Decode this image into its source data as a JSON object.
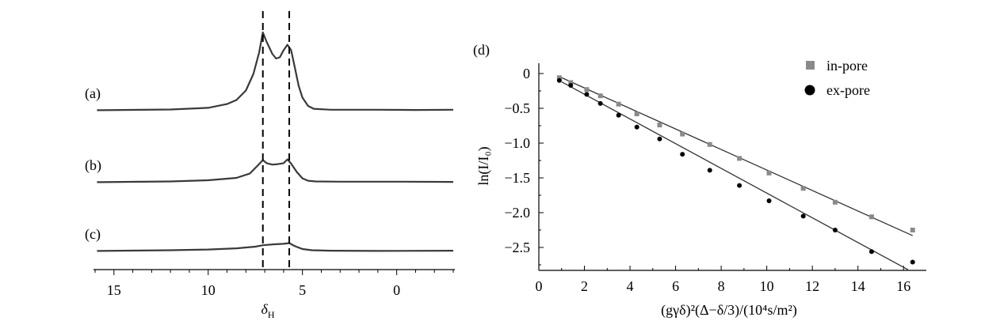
{
  "chart_data": [
    {
      "type": "line",
      "panel": "left",
      "xlabel": "δH",
      "xlim": [
        16,
        -3
      ],
      "x_ticks": [
        "15",
        "10",
        "5",
        "0"
      ],
      "x_tick_values": [
        15,
        10,
        5,
        0
      ],
      "dashed_markers_x": [
        7.1,
        5.7
      ],
      "grid": false,
      "series": [
        {
          "name": "(a)",
          "x": [
            15.9,
            12,
            10,
            9,
            8.5,
            8.0,
            7.6,
            7.3,
            7.1,
            6.9,
            6.6,
            6.4,
            6.2,
            6.0,
            5.8,
            5.6,
            5.4,
            5.2,
            5.0,
            4.7,
            4.4,
            3.5,
            1,
            -1,
            -3
          ],
          "y": [
            0.02,
            0.05,
            0.12,
            0.28,
            0.45,
            0.85,
            1.55,
            2.45,
            3.3,
            2.9,
            2.4,
            2.2,
            2.25,
            2.55,
            2.78,
            2.55,
            1.8,
            1.05,
            0.55,
            0.2,
            0.08,
            0.04,
            0.04,
            0.03,
            0.04
          ]
        },
        {
          "name": "(b)",
          "x": [
            15.9,
            12,
            10,
            8.5,
            7.8,
            7.4,
            7.1,
            6.9,
            6.6,
            6.3,
            6.0,
            5.8,
            5.6,
            5.3,
            5.0,
            4.7,
            4.3,
            3,
            0,
            -3
          ],
          "y": [
            0.02,
            0.05,
            0.1,
            0.2,
            0.38,
            0.7,
            0.95,
            0.82,
            0.76,
            0.78,
            0.82,
            0.98,
            0.8,
            0.45,
            0.18,
            0.08,
            0.05,
            0.04,
            0.04,
            0.03
          ]
        },
        {
          "name": "(c)",
          "x": [
            15.9,
            12,
            10,
            8.5,
            7.5,
            7.1,
            6.5,
            6.0,
            5.7,
            5.4,
            5.0,
            4.5,
            3.5,
            1,
            -3
          ],
          "y": [
            0.02,
            0.05,
            0.08,
            0.13,
            0.2,
            0.26,
            0.3,
            0.32,
            0.35,
            0.22,
            0.1,
            0.05,
            0.03,
            0.02,
            0.03
          ]
        }
      ]
    },
    {
      "type": "scatter",
      "panel": "right",
      "title": "(d)",
      "xlabel": "(gγδ)²(Δ−δ/3)/(10⁴s/m²)",
      "ylabel": "ln(I/I₀)",
      "xlim": [
        0,
        17
      ],
      "ylim": [
        -2.8,
        0.1
      ],
      "x_ticks": [
        "0",
        "2",
        "4",
        "6",
        "8",
        "10",
        "12",
        "14",
        "16"
      ],
      "x_tick_values": [
        0,
        2,
        4,
        6,
        8,
        10,
        12,
        14,
        16
      ],
      "y_ticks": [
        "0",
        "−0.5",
        "−1.0",
        "−1.5",
        "−2.0",
        "−2.5"
      ],
      "y_tick_values": [
        0,
        -0.5,
        -1.0,
        -1.5,
        -2.0,
        -2.5
      ],
      "legend_position": "top-right",
      "grid": false,
      "series": [
        {
          "name": "in-pore",
          "marker": "square",
          "color": "#8a8a8a",
          "x": [
            0.9,
            1.4,
            2.1,
            2.7,
            3.5,
            4.3,
            5.3,
            6.3,
            7.5,
            8.8,
            10.1,
            11.6,
            13.0,
            14.6,
            16.4
          ],
          "y": [
            -0.06,
            -0.13,
            -0.23,
            -0.32,
            -0.44,
            -0.58,
            -0.74,
            -0.87,
            -1.02,
            -1.22,
            -1.43,
            -1.65,
            -1.85,
            -2.06,
            -2.25
          ],
          "fit": [
            [
              1.0,
              -0.06
            ],
            [
              16.4,
              -2.33
            ]
          ]
        },
        {
          "name": "ex-pore",
          "marker": "circle",
          "color": "#000000",
          "x": [
            0.9,
            1.4,
            2.1,
            2.7,
            3.5,
            4.3,
            5.3,
            6.3,
            7.5,
            8.8,
            10.1,
            11.6,
            13.0,
            14.6,
            16.4
          ],
          "y": [
            -0.1,
            -0.17,
            -0.3,
            -0.43,
            -0.6,
            -0.77,
            -0.94,
            -1.16,
            -1.39,
            -1.61,
            -1.83,
            -2.05,
            -2.25,
            -2.56,
            -2.71
          ],
          "fit": [
            [
              1.0,
              -0.12
            ],
            [
              16.2,
              -2.82
            ]
          ]
        }
      ]
    }
  ]
}
